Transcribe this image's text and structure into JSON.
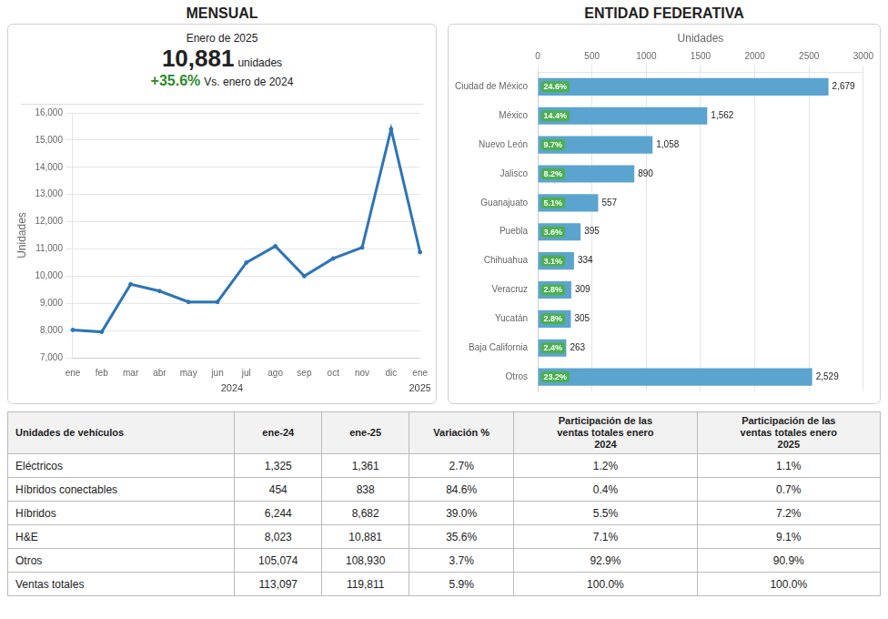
{
  "chart_data": [
    {
      "type": "line",
      "title": "MENSUAL",
      "subtitle": "Enero de 2025",
      "annotations": [
        "10,881",
        "unidades",
        "+35.6%",
        "Vs. enero de 2024"
      ],
      "highlight_color": "#2d8a2d",
      "categories": [
        "ene",
        "feb",
        "mar",
        "abr",
        "may",
        "jun",
        "jul",
        "ago",
        "sep",
        "oct",
        "nov",
        "dic",
        "ene"
      ],
      "category_years": [
        "2024",
        "2024",
        "2024",
        "2024",
        "2024",
        "2024",
        "2024",
        "2024",
        "2024",
        "2024",
        "2024",
        "2024",
        "2025"
      ],
      "values": [
        8023,
        7950,
        9700,
        9450,
        9050,
        9050,
        10500,
        11100,
        10000,
        10650,
        11050,
        15400,
        10881
      ],
      "color": "#2E75B6",
      "ylabel": "Unidades",
      "ylim": [
        7000,
        16000
      ],
      "yticks": [
        {
          "value": 7000,
          "label": "7,000"
        },
        {
          "value": 8000,
          "label": "8,000"
        },
        {
          "value": 9000,
          "label": "9,000"
        },
        {
          "value": 10000,
          "label": "10,000"
        },
        {
          "value": 11000,
          "label": "11,000"
        },
        {
          "value": 12000,
          "label": "12,000"
        },
        {
          "value": 13000,
          "label": "13,000"
        },
        {
          "value": 14000,
          "label": "14,000"
        },
        {
          "value": 15000,
          "label": "15,000"
        },
        {
          "value": 16000,
          "label": "16,000"
        }
      ],
      "grid": true
    },
    {
      "type": "bar",
      "title": "ENTIDAD FEDERATIVA",
      "orientation": "horizontal",
      "categories": [
        "Ciudad de México",
        "México",
        "Nuevo León",
        "Jalisco",
        "Guanajuato",
        "Puebla",
        "Chihuahua",
        "Veracruz",
        "Yucatán",
        "Baja California",
        "Otros"
      ],
      "values": [
        2679,
        1562,
        1058,
        890,
        557,
        395,
        334,
        309,
        305,
        263,
        2529
      ],
      "value_labels": [
        "2,679",
        "1,562",
        "1,058",
        "890",
        "557",
        "395",
        "334",
        "309",
        "305",
        "263",
        "2,529"
      ],
      "data_labels": true,
      "share_labels": [
        "24.6%",
        "14.4%",
        "9.7%",
        "8.2%",
        "5.1%",
        "3.6%",
        "3.1%",
        "2.8%",
        "2.8%",
        "2.4%",
        "23.2%"
      ],
      "share_color": "#4CAF50",
      "color": "#5BA4CF",
      "xlabel": "Unidades",
      "xlim": [
        0,
        3000
      ],
      "xticks": [
        0,
        500,
        1000,
        1500,
        2000,
        2500,
        3000
      ],
      "grid": true
    },
    {
      "type": "table",
      "columns": [
        "Unidades de vehículos",
        "ene-24",
        "ene-25",
        "Variación %",
        "Participación de las\nventas totales enero\n2024",
        "Participación de las\nventas totales enero\n2025"
      ],
      "rows": [
        [
          "Eléctricos",
          "1,325",
          "1,361",
          "2.7%",
          "1.2%",
          "1.1%"
        ],
        [
          "Híbridos conectables",
          "454",
          "838",
          "84.6%",
          "0.4%",
          "0.7%"
        ],
        [
          "Híbridos",
          "6,244",
          "8,682",
          "39.0%",
          "5.5%",
          "7.2%"
        ],
        [
          "H&E",
          "8,023",
          "10,881",
          "35.6%",
          "7.1%",
          "9.1%"
        ],
        [
          "Otros",
          "105,074",
          "108,930",
          "3.7%",
          "92.9%",
          "90.9%"
        ],
        [
          "Ventas totales",
          "113,097",
          "119,811",
          "5.9%",
          "100.0%",
          "100.0%"
        ]
      ]
    }
  ]
}
